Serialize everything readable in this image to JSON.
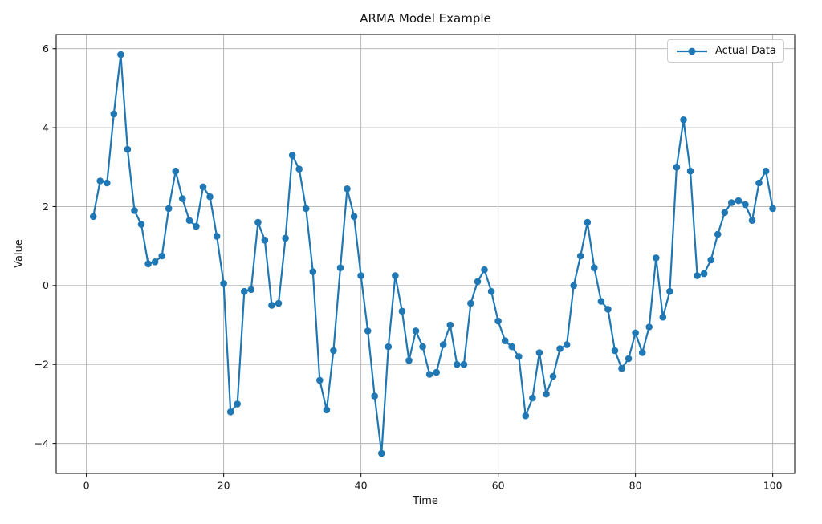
{
  "figure": {
    "title": "ARMA Model Example",
    "xlabel": "Time",
    "ylabel": "Value",
    "background": "#ffffff"
  },
  "legend": {
    "label": "Actual Data",
    "position": "upper right"
  },
  "colors": {
    "line": "#1f77b4",
    "marker": "#1f77b4",
    "grid": "#b0b0b0",
    "spine": "#1a1a1a",
    "text": "#151515",
    "legend_border": "#cccccc"
  },
  "axes": {
    "x_ticks": [
      0,
      20,
      40,
      60,
      80,
      100
    ],
    "y_ticks": [
      -4,
      -2,
      0,
      2,
      4,
      6
    ],
    "xlim": [
      -4.4,
      103.2
    ],
    "ylim": [
      -4.76,
      6.36
    ],
    "grid": true
  },
  "chart_data": {
    "type": "line",
    "title": "ARMA Model Example",
    "xlabel": "Time",
    "ylabel": "Value",
    "xlim": [
      -4.4,
      103.2
    ],
    "ylim": [
      -4.76,
      6.36
    ],
    "grid": true,
    "legend_position": "upper right",
    "x_ticks": [
      0,
      20,
      40,
      60,
      80,
      100
    ],
    "y_ticks": [
      -4,
      -2,
      0,
      2,
      4,
      6
    ],
    "series": [
      {
        "name": "Actual Data",
        "color": "#1f77b4",
        "marker": "circle",
        "x_start": 1,
        "x_step": 1,
        "values": [
          1.75,
          2.65,
          2.6,
          4.35,
          5.85,
          3.45,
          1.9,
          1.55,
          0.55,
          0.6,
          0.75,
          1.95,
          2.9,
          2.2,
          1.65,
          1.5,
          2.5,
          2.25,
          1.25,
          0.05,
          -3.2,
          -3.0,
          -0.15,
          -0.1,
          1.6,
          1.15,
          -0.5,
          -0.45,
          1.2,
          3.3,
          2.95,
          1.95,
          0.35,
          -2.4,
          -3.15,
          -1.65,
          0.45,
          2.45,
          1.75,
          0.25,
          -1.15,
          -2.8,
          -4.25,
          -1.55,
          0.25,
          -0.65,
          -1.9,
          -1.15,
          -1.55,
          -2.25,
          -2.2,
          -1.5,
          -1.0,
          -2.0,
          -2.0,
          -0.45,
          0.1,
          0.4,
          -0.15,
          -0.9,
          -1.4,
          -1.55,
          -1.8,
          -3.3,
          -2.85,
          -1.7,
          -2.75,
          -2.3,
          -1.6,
          -1.5,
          0.0,
          0.75,
          1.6,
          0.45,
          -0.4,
          -0.6,
          -1.65,
          -2.1,
          -1.85,
          -1.2,
          -1.7,
          -1.05,
          0.7,
          -0.8,
          -0.15,
          3.0,
          4.2,
          2.9,
          0.25,
          0.3,
          0.65,
          1.3,
          1.85,
          2.1,
          2.15,
          2.05,
          1.65,
          2.6,
          2.9,
          1.95
        ]
      }
    ]
  }
}
